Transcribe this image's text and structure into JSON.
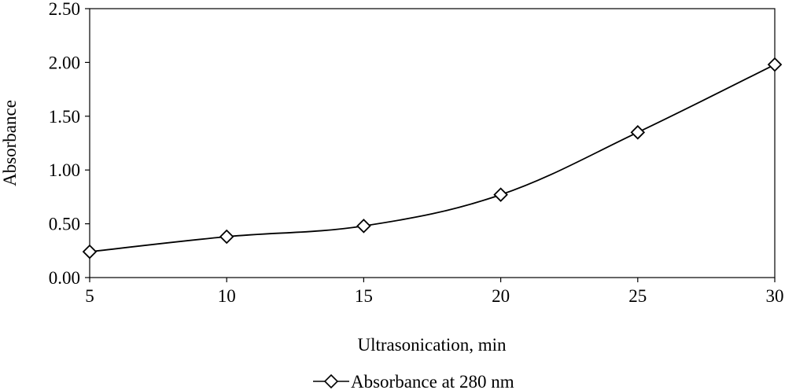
{
  "chart_data": {
    "type": "line",
    "title": "",
    "xlabel": "Ultrasonication, min",
    "ylabel": "Absorbance",
    "x": [
      5,
      10,
      15,
      20,
      25,
      30
    ],
    "xticks": [
      "5",
      "10",
      "15",
      "20",
      "25",
      "30"
    ],
    "xlim": [
      5,
      30
    ],
    "yticks": [
      "0.00",
      "0.50",
      "1.00",
      "1.50",
      "2.00",
      "2.50"
    ],
    "ylim": [
      0,
      2.5
    ],
    "grid": false,
    "legend_position": "bottom",
    "marker": "diamond",
    "series": [
      {
        "name": "Absorbance at 280 nm",
        "color": "#000000",
        "values": [
          0.24,
          0.38,
          0.48,
          0.77,
          1.35,
          1.98
        ]
      }
    ]
  }
}
